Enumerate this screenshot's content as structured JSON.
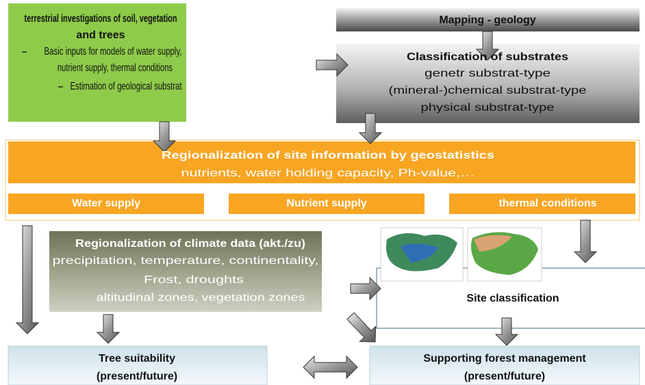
{
  "terrestrial": {
    "title": [
      "terrestrial investigations of soil, vegetation",
      "and trees"
    ],
    "items": [
      [
        "Basic inputs for models of  water supply,",
        "nutrient supply, thermal conditions"
      ],
      [
        "Estimation of geological substrat"
      ]
    ]
  },
  "mapping": "Mapping - geology",
  "classification": {
    "title": "Classification of substrates",
    "lines": [
      "genetr substrat-type",
      "(mineral-)chemical substrat-type",
      "physical substrat-type"
    ]
  },
  "regionalization": {
    "title": "Regionalization  of site information by geostatistics",
    "subtitle": "nutrients, water holding capacity, Ph-value,…"
  },
  "factors": [
    "Water supply",
    "Nutrient supply",
    "thermal conditions"
  ],
  "climate": {
    "title": "Regionalization of climate data (akt./zu)",
    "lines": [
      "precipitation, temperature, continentality,",
      "Frost, droughts",
      "altitudinal zones, vegetation zones"
    ]
  },
  "site": "Site classification",
  "outputs": {
    "tree": [
      "Tree suitability",
      "(present/future)"
    ],
    "forest": [
      "Supporting forest management",
      "(present/future)"
    ]
  }
}
